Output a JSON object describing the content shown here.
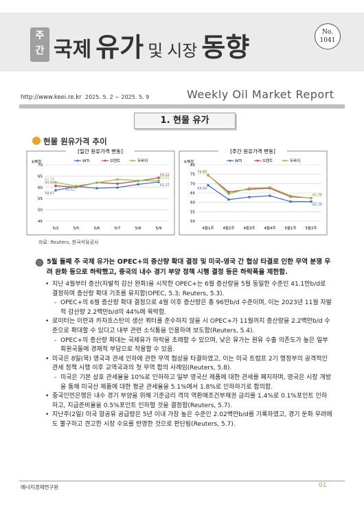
{
  "header": {
    "label": [
      "주",
      "간"
    ],
    "title": [
      "국제",
      "유가",
      "및",
      "시장",
      "동향"
    ],
    "issue": [
      "No.",
      "1041"
    ],
    "url": "http://www.keei.re.kr",
    "date": "2025. 5. 2 ~ 2025. 5. 9",
    "english": "Weekly Oil Market Report"
  },
  "section": "1. 현물 유가",
  "subsection": "현물 원유가격 추이",
  "chart_data": [
    {
      "type": "line",
      "title": "[일간 원유가격 변동]",
      "y_label": "$/배럴",
      "categories": [
        "5/2",
        "5/5",
        "5/6",
        "5/7",
        "5/8",
        "5/9"
      ],
      "ylim": [
        45,
        70
      ],
      "yticks": [
        45,
        50,
        55,
        60,
        65,
        70
      ],
      "grid": true,
      "series": [
        {
          "name": "WTI",
          "color": "#4472c4",
          "values": [
            58.67,
            60.42,
            59.6,
            59.9,
            61.3,
            62.37
          ],
          "value_labels": [
            "58.67",
            "60.42",
            null,
            null,
            null,
            "62.37"
          ]
        },
        {
          "name": "브렌트",
          "color": "#c0504d",
          "values": [
            60.68,
            60.1,
            62.1,
            61.6,
            62.8,
            64.22
          ],
          "value_labels": [
            "60.68",
            null,
            null,
            null,
            null,
            "64.22"
          ]
        },
        {
          "name": "두바이",
          "color": "#9bbb59",
          "values": [
            62.2,
            60.6,
            62.0,
            63.5,
            63.0,
            62.91
          ],
          "value_labels": [
            "62.20",
            null,
            null,
            null,
            null,
            "62.91"
          ]
        }
      ]
    },
    {
      "type": "line",
      "title": "[주간 원유가격 변동]",
      "y_label": "$/배럴",
      "categories": [
        "4월1주",
        "4월2주",
        "4월3주",
        "4월4주",
        "5월1주",
        "5월2주"
      ],
      "ylim": [
        50,
        80
      ],
      "yticks": [
        50,
        55,
        60,
        65,
        70,
        75,
        80
      ],
      "grid": true,
      "series": [
        {
          "name": "WTI",
          "color": "#4472c4",
          "values": [
            69.09,
            61.5,
            62.8,
            63.5,
            60.4,
            60.39
          ],
          "value_labels": [
            "69.09",
            null,
            null,
            null,
            null,
            "60.39"
          ]
        },
        {
          "name": "브렌트",
          "color": "#c0504d",
          "values": [
            74.45,
            65.5,
            67.0,
            67.5,
            63.0,
            62.29
          ],
          "value_labels": [
            "74.45",
            null,
            null,
            null,
            null,
            "62.29"
          ]
        },
        {
          "name": "두바이",
          "color": "#9bbb59",
          "values": [
            74.69,
            64.5,
            67.5,
            68.0,
            63.5,
            62.2
          ],
          "value_labels": [
            "74.69",
            null,
            null,
            null,
            null,
            "62.20"
          ]
        }
      ]
    }
  ],
  "source": "자료: Reuters, 한국석유공사",
  "body": {
    "main": "5월 둘째 주 국제 유가는 OPEC+의 증산량 확대 결정 및 미국-영국 간 협상 타결로 인한 무역 분쟁 우려 완화 등으로 하락했고, 중국의 내수 경기 부양 정책 시행 결정 등은 하락폭을 제한함.",
    "items": [
      {
        "text": "지난 4월부터 증산(자발적 감산 완화)을 시작한 OPEC+는 6월 증산량을 5월 동일한 수준인 41.1만b/d로 결정하며 증산량 확대 기조를 유지함(OPEC, 5.3; Reuters, 5.3).",
        "sub": "OPEC+의 6월 증산량 확대 결정으로 4월 이후 증산량은 총 96만b/d 수준이며, 이는 2023년 11월 자발적 감산량 2.2백만b/d의 44%에 육박함."
      },
      {
        "text": "로이터는 이란과 카자흐스탄이 생산 쿼터를 준수하지 않을 시 OPEC+가 11월까지 증산량을 2.2백만b/d 수준으로 확대할 수 있다고 내부 관련 소식통을 인용하여 보도함(Reuters, 5.4).",
        "sub": "OPEC+의 증산량 확대는 국제유가 하락을 초래할 수 있으며, 낮은 유가는 원유 수출 의존도가 높은 일부 회원국들에 경제적 부담으로 작용할 수 있음."
      },
      {
        "text": "미국은 8일(목) 영국과 관세 인하에 관한 무역 협상을 타결하였고, 이는 미국 트럼프 2기 행정부의 공격적인 관세 정책 시행 이후 교역국과의 첫 무역 합의 사례임(Reuters, 5.8).",
        "sub": "미국은 기본 상호 관세율을 10%로 인하하고 일부 영국산 제품에 대한 관세를 폐지하며, 영국은 시장 개방을 통해 미국산 제품에 대한 평균 관세율을 5.1%에서 1.8%로 인하하기로 합의함."
      },
      {
        "text": "중국인민은행은 내수 경기 부양을 위해 기준금리 격의 역환매조건부채권 금리를 1.4%로 0.1%포인트 인하하고, 지급준비율을 0.5%포인트 인하할 것을 결정함(Reuters, 5.7)."
      },
      {
        "text": "지난주(2일) 미국 항공유 공급량은 5년 이내 가장 높은 수준인 2.02백만b/d를 기록하였고, 경기 둔화 우려에도 불구하고 견고한 시장 수요를 반영한 것으로 판단됨(Reuters, 5.7)."
      }
    ]
  },
  "footer": {
    "org": "에너지경제연구원",
    "page": "01"
  }
}
